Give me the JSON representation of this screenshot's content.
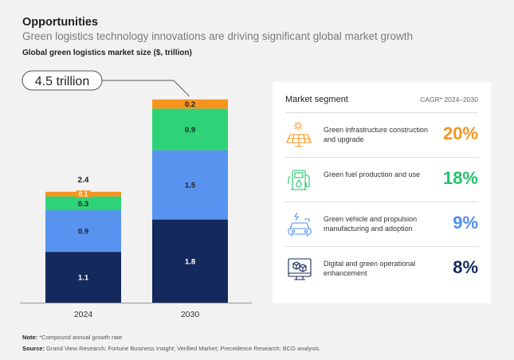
{
  "header": {
    "title": "Opportunities",
    "subtitle": "Green logistics technology innovations are driving significant global market growth",
    "chart_label": "Global green logistics market size ($, trillion)"
  },
  "chart_data": {
    "type": "bar",
    "stacked": true,
    "categories": [
      "2024",
      "2030"
    ],
    "series": [
      {
        "values": [
          1.1,
          1.8
        ],
        "color": "#14295c"
      },
      {
        "values": [
          0.9,
          1.5
        ],
        "color": "#5893f0"
      },
      {
        "values": [
          0.3,
          0.9
        ],
        "color": "#2fd377"
      },
      {
        "values": [
          0.1,
          0.2
        ],
        "color": "#f7941d"
      }
    ],
    "totals": [
      "2.4",
      ""
    ],
    "callout": "4.5 trillion",
    "ylim": [
      0,
      4.5
    ],
    "grid": false
  },
  "panel": {
    "header": "Market segment",
    "cagr_header": "CAGR* 2024–2030",
    "segments": [
      {
        "icon": "solar-panel-icon",
        "label": "Green infrastructure construction and upgrade",
        "cagr": "20%",
        "color": "#f7941d"
      },
      {
        "icon": "fuel-pump-icon",
        "label": "Green fuel production and use",
        "cagr": "18%",
        "color": "#21c26a"
      },
      {
        "icon": "electric-vehicle-icon",
        "label": "Green vehicle and propulsion manufacturing and adoption",
        "cagr": "9%",
        "color": "#4f8ff0"
      },
      {
        "icon": "digital-cubes-icon",
        "label": "Digital and green operational enhancement",
        "cagr": "8%",
        "color": "#14295c"
      }
    ]
  },
  "footer": {
    "note_label": "Note:",
    "note_text": " *Compound annual growth rate",
    "source_label": "Source:",
    "source_text": " Grand View Research; Fortune Business Insight; Verified Market; Precedence Research; BCG analysis."
  }
}
